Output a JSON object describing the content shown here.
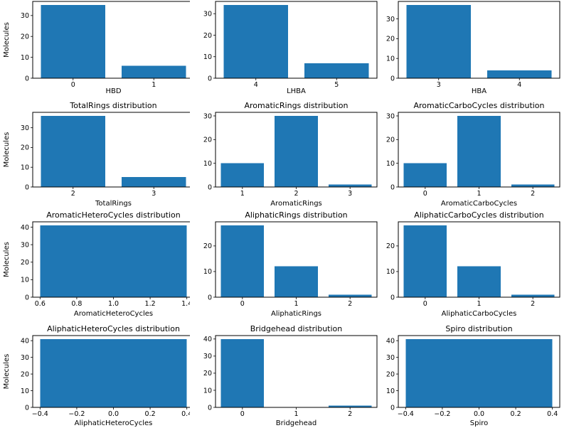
{
  "figure": {
    "background": "#ffffff",
    "bar_color": "#1f77b4",
    "axis_color": "#000000",
    "molecule_count_axis_label": "Molecules"
  },
  "chart_data": [
    {
      "type": "bar",
      "title": "",
      "xlabel": "HBD",
      "ylabel": "Molecules",
      "categories": [
        "0",
        "1"
      ],
      "values": [
        35,
        6
      ],
      "yticks": [
        0,
        10,
        20,
        30
      ],
      "ylim": [
        0,
        36.75
      ],
      "grid": false,
      "legend": "none"
    },
    {
      "type": "bar",
      "title": "",
      "xlabel": "LHBA",
      "ylabel": "",
      "categories": [
        "4",
        "5"
      ],
      "values": [
        34,
        7
      ],
      "yticks": [
        0,
        10,
        20,
        30
      ],
      "ylim": [
        0,
        35.7
      ],
      "grid": false,
      "legend": "none"
    },
    {
      "type": "bar",
      "title": "",
      "xlabel": "HBA",
      "ylabel": "",
      "categories": [
        "3",
        "4"
      ],
      "values": [
        37,
        4
      ],
      "yticks": [
        0,
        10,
        20,
        30
      ],
      "ylim": [
        0,
        38.85
      ],
      "grid": false,
      "legend": "none"
    },
    {
      "type": "bar",
      "title": "TotalRings distribution",
      "xlabel": "TotalRings",
      "ylabel": "Molecules",
      "categories": [
        "2",
        "3"
      ],
      "values": [
        36,
        5
      ],
      "yticks": [
        0,
        10,
        20,
        30
      ],
      "ylim": [
        0,
        37.8
      ],
      "grid": false,
      "legend": "none"
    },
    {
      "type": "bar",
      "title": "AromaticRings distribution",
      "xlabel": "AromaticRings",
      "ylabel": "",
      "categories": [
        "1",
        "2",
        "3"
      ],
      "values": [
        10,
        30,
        1
      ],
      "yticks": [
        0,
        10,
        20,
        30
      ],
      "ylim": [
        0,
        31.5
      ],
      "grid": false,
      "legend": "none"
    },
    {
      "type": "bar",
      "title": "AromaticCarboCycles distribution",
      "xlabel": "AromaticCarboCycles",
      "ylabel": "",
      "categories": [
        "0",
        "1",
        "2"
      ],
      "values": [
        10,
        30,
        1
      ],
      "yticks": [
        0,
        10,
        20,
        30
      ],
      "ylim": [
        0,
        31.5
      ],
      "grid": false,
      "legend": "none"
    },
    {
      "type": "bar",
      "title": "AromaticHeteroCycles distribution",
      "xlabel": "AromaticHeteroCycles",
      "ylabel": "Molecules",
      "continuous": true,
      "bar_span": [
        0.6,
        1.4
      ],
      "values": [
        41
      ],
      "xlim": [
        0.56,
        1.44
      ],
      "xticks": [
        0.6,
        0.8,
        1.0,
        1.2,
        1.4
      ],
      "xtick_labels": [
        "0.6",
        "0.8",
        "1.0",
        "1.2",
        "1.4"
      ],
      "yticks": [
        0,
        10,
        20,
        30,
        40
      ],
      "ylim": [
        0,
        43.05
      ],
      "grid": false,
      "legend": "none"
    },
    {
      "type": "bar",
      "title": "AliphaticRings distribution",
      "xlabel": "AliphaticRings",
      "ylabel": "",
      "categories": [
        "0",
        "1",
        "2"
      ],
      "values": [
        28,
        12,
        1
      ],
      "yticks": [
        0,
        10,
        20
      ],
      "ylim": [
        0,
        29.4
      ],
      "grid": false,
      "legend": "none"
    },
    {
      "type": "bar",
      "title": "AliphaticCarboCycles distribution",
      "xlabel": "AliphaticCarboCycles",
      "ylabel": "",
      "categories": [
        "0",
        "1",
        "2"
      ],
      "values": [
        28,
        12,
        1
      ],
      "yticks": [
        0,
        10,
        20
      ],
      "ylim": [
        0,
        29.4
      ],
      "grid": false,
      "legend": "none"
    },
    {
      "type": "bar",
      "title": "AliphaticHeteroCycles distribution",
      "xlabel": "AliphaticHeteroCycles",
      "ylabel": "Molecules",
      "continuous": true,
      "bar_span": [
        -0.4,
        0.4
      ],
      "values": [
        41
      ],
      "xlim": [
        -0.44,
        0.44
      ],
      "xticks": [
        -0.4,
        -0.2,
        0.0,
        0.2,
        0.4
      ],
      "xtick_labels": [
        "−0.4",
        "−0.2",
        "0.0",
        "0.2",
        "0.4"
      ],
      "yticks": [
        0,
        10,
        20,
        30,
        40
      ],
      "ylim": [
        0,
        43.05
      ],
      "grid": false,
      "legend": "none"
    },
    {
      "type": "bar",
      "title": "Bridgehead distribution",
      "xlabel": "Bridgehead",
      "ylabel": "",
      "categories": [
        "0",
        "1",
        "2"
      ],
      "values": [
        40,
        0,
        1
      ],
      "yticks": [
        0,
        10,
        20,
        30,
        40
      ],
      "ylim": [
        0,
        42
      ],
      "grid": false,
      "legend": "none"
    },
    {
      "type": "bar",
      "title": "Spiro distribution",
      "xlabel": "Spiro",
      "ylabel": "",
      "continuous": true,
      "bar_span": [
        -0.4,
        0.4
      ],
      "values": [
        41
      ],
      "xlim": [
        -0.44,
        0.44
      ],
      "xticks": [
        -0.4,
        -0.2,
        0.0,
        0.2,
        0.4
      ],
      "xtick_labels": [
        "−0.4",
        "−0.2",
        "0.0",
        "0.2",
        "0.4"
      ],
      "yticks": [
        0,
        10,
        20,
        30,
        40
      ],
      "ylim": [
        0,
        43.05
      ],
      "grid": false,
      "legend": "none"
    }
  ]
}
